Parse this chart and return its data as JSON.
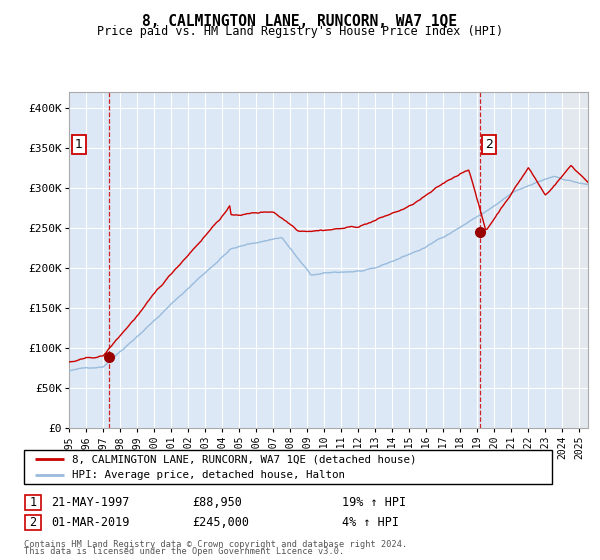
{
  "title": "8, CALMINGTON LANE, RUNCORN, WA7 1QE",
  "subtitle": "Price paid vs. HM Land Registry's House Price Index (HPI)",
  "transaction1": {
    "date": "21-MAY-1997",
    "price": 88950,
    "hpi_pct": "19% ↑ HPI",
    "label": "1",
    "x_year": 1997.38
  },
  "transaction2": {
    "date": "01-MAR-2019",
    "price": 245000,
    "hpi_pct": "4% ↑ HPI",
    "label": "2",
    "x_year": 2019.17
  },
  "legend_line1": "8, CALMINGTON LANE, RUNCORN, WA7 1QE (detached house)",
  "legend_line2": "HPI: Average price, detached house, Halton",
  "footnote1": "Contains HM Land Registry data © Crown copyright and database right 2024.",
  "footnote2": "This data is licensed under the Open Government Licence v3.0.",
  "red_color": "#cc0000",
  "blue_color": "#99bbdd",
  "bg_color": "#dce8f5",
  "grid_color": "#ffffff",
  "dashed_line_color": "#cc0000",
  "marker_color": "#990000",
  "ylim": [
    0,
    420000
  ],
  "xlim_start": 1995.0,
  "xlim_end": 2025.5,
  "seed": 42
}
